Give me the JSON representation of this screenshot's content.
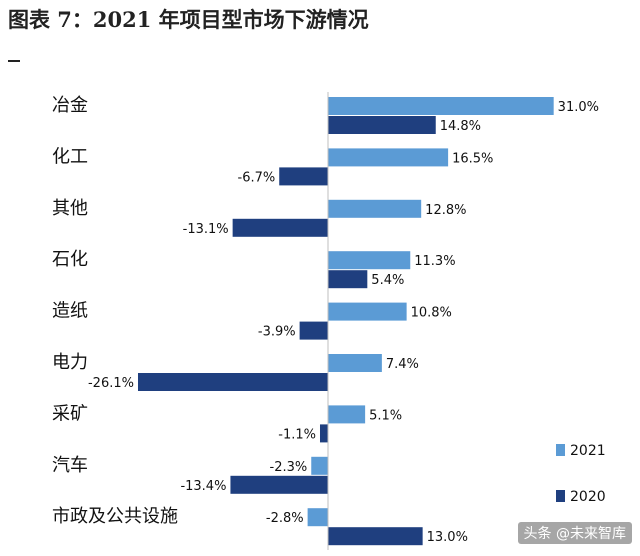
{
  "title": "图表 7：2021 年项目型市场下游情况",
  "watermark": "头条 @未来智库",
  "colors": {
    "series2021": "#5b9bd5",
    "series2020": "#1f3f7f",
    "axis": "#bfbfbf"
  },
  "chart_data": {
    "type": "bar",
    "orientation": "horizontal",
    "title": "图表 7：2021 年项目型市场下游情况",
    "categories": [
      "冶金",
      "化工",
      "其他",
      "石化",
      "造纸",
      "电力",
      "采矿",
      "汽车",
      "市政及公共设施"
    ],
    "series": [
      {
        "name": "2021",
        "values": [
          31.0,
          16.5,
          12.8,
          11.3,
          10.8,
          7.4,
          5.1,
          -2.3,
          -2.8
        ],
        "labels": [
          "31.0%",
          "16.5%",
          "12.8%",
          "11.3%",
          "10.8%",
          "7.4%",
          "5.1%",
          "-2.3%",
          "-2.8%"
        ]
      },
      {
        "name": "2020",
        "values": [
          14.8,
          -6.7,
          -13.1,
          5.4,
          -3.9,
          -26.1,
          -1.1,
          -13.4,
          13.0
        ],
        "labels": [
          "14.8%",
          "-6.7%",
          "-13.1%",
          "5.4%",
          "-3.9%",
          "-26.1%",
          "-1.1%",
          "-13.4%",
          "13.0%"
        ]
      }
    ],
    "legend_position": "bottom-right",
    "grid": false
  }
}
